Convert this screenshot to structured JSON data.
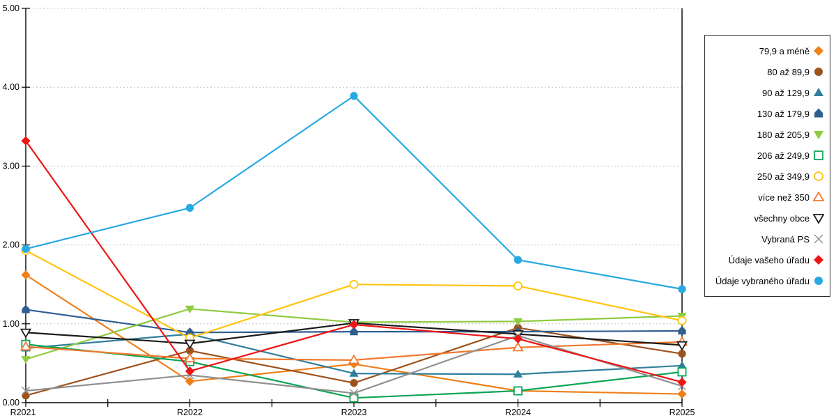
{
  "chart_data": {
    "type": "line",
    "title": "",
    "xlabel": "",
    "ylabel": "",
    "categories": [
      "R2021",
      "R2022",
      "R2023",
      "R2024",
      "R2025"
    ],
    "ylim": [
      0,
      5
    ],
    "ytick_labels": [
      "0.00",
      "1.00",
      "2.00",
      "3.00",
      "4.00",
      "5.00"
    ],
    "grid": "horizontal-dashed",
    "legend_position": "right",
    "colors": {
      "grid": "#c3c3c3",
      "axis": "#000000",
      "background": "#ffffff"
    },
    "series": [
      {
        "name": "79,9 a méně",
        "marker": "diamond",
        "filled": true,
        "color": "#EE8019",
        "values": [
          1.62,
          0.27,
          0.49,
          0.15,
          0.11
        ]
      },
      {
        "name": "80 až 89,9",
        "marker": "circle",
        "filled": true,
        "color": "#9E531D",
        "values": [
          0.09,
          0.66,
          0.25,
          0.95,
          0.62
        ]
      },
      {
        "name": "90 až 129,9",
        "marker": "triangle-up",
        "filled": true,
        "color": "#2F7F9D",
        "values": [
          0.69,
          0.87,
          0.37,
          0.36,
          0.47
        ]
      },
      {
        "name": "130 až 179,9",
        "marker": "pentagon",
        "filled": true,
        "color": "#2F5E91",
        "values": [
          1.18,
          0.89,
          0.9,
          0.9,
          0.91
        ]
      },
      {
        "name": "180 až 205,9",
        "marker": "triangle-down",
        "filled": true,
        "color": "#8FCB41",
        "values": [
          0.55,
          1.19,
          1.02,
          1.03,
          1.1
        ]
      },
      {
        "name": "206 až 249,9",
        "marker": "square",
        "filled": false,
        "color": "#0CA556",
        "values": [
          0.74,
          0.52,
          0.06,
          0.15,
          0.39
        ]
      },
      {
        "name": "250 až 349,9",
        "marker": "circle",
        "filled": false,
        "color": "#FFC410",
        "values": [
          1.93,
          0.82,
          1.5,
          1.48,
          1.04
        ]
      },
      {
        "name": "více než 350",
        "marker": "triangle-up",
        "filled": false,
        "color": "#F0792F",
        "values": [
          0.71,
          0.56,
          0.54,
          0.7,
          0.77
        ]
      },
      {
        "name": "všechny obce",
        "marker": "triangle-down",
        "filled": false,
        "color": "#1C1C1C",
        "values": [
          0.89,
          0.75,
          1.01,
          0.87,
          0.73
        ]
      },
      {
        "name": "Vybraná PS",
        "marker": "x",
        "filled": false,
        "color": "#909090",
        "values": [
          0.15,
          0.35,
          0.12,
          0.85,
          0.21
        ]
      },
      {
        "name": "Údaje vašeho úřadu",
        "marker": "diamond",
        "filled": true,
        "color": "#EE1515",
        "values": [
          3.32,
          0.4,
          0.99,
          0.81,
          0.26
        ]
      },
      {
        "name": "Údaje vybraného úřadu",
        "marker": "circle",
        "filled": true,
        "color": "#27A9E1",
        "values": [
          1.95,
          2.47,
          3.89,
          1.81,
          1.44
        ]
      }
    ]
  }
}
